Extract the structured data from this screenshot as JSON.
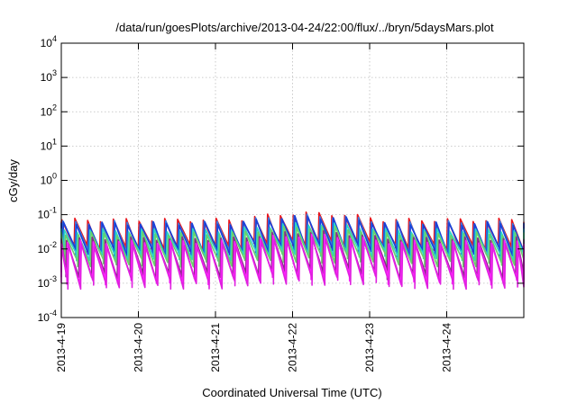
{
  "chart_data": {
    "type": "line",
    "title": "/data/run/goesPlots/archive/2013-04-24/22:00/flux/../bryn/5daysMars.plot",
    "xlabel": "Coordinated Universal Time (UTC)",
    "ylabel": "cGy/day",
    "yscale": "log",
    "ylim": [
      0.0001,
      10000
    ],
    "xlim_days": [
      0,
      6.0
    ],
    "grid": true,
    "legend": "none",
    "y_ticks": [
      {
        "base": "10",
        "exp": "-4",
        "value": 0.0001
      },
      {
        "base": "10",
        "exp": "-3",
        "value": 0.001
      },
      {
        "base": "10",
        "exp": "-2",
        "value": 0.01
      },
      {
        "base": "10",
        "exp": "-1",
        "value": 0.1
      },
      {
        "base": "10",
        "exp": "0",
        "value": 1
      },
      {
        "base": "10",
        "exp": "1",
        "value": 10
      },
      {
        "base": "10",
        "exp": "2",
        "value": 100
      },
      {
        "base": "10",
        "exp": "3",
        "value": 1000
      },
      {
        "base": "10",
        "exp": "4",
        "value": 10000
      }
    ],
    "x_ticks": [
      {
        "label": "2013-4-19",
        "day": 0
      },
      {
        "label": "2013-4-20",
        "day": 1
      },
      {
        "label": "2013-4-21",
        "day": 2
      },
      {
        "label": "2013-4-22",
        "day": 3
      },
      {
        "label": "2013-4-23",
        "day": 4
      },
      {
        "label": "2013-4-24",
        "day": 5
      }
    ],
    "sawtooth_period_days": 0.1667,
    "series": [
      {
        "color": "#e8141c",
        "peak": 0.07,
        "trough": 0.011,
        "phase": 0.0
      },
      {
        "color": "#3a7be0",
        "peak": 0.06,
        "trough": 0.009,
        "phase": 0.012
      },
      {
        "color": "#1a3fd8",
        "peak": 0.055,
        "trough": 0.008,
        "phase": 0.02
      },
      {
        "color": "#2ad4c8",
        "peak": 0.035,
        "trough": 0.006,
        "phase": 0.03
      },
      {
        "color": "#6ad06a",
        "peak": 0.028,
        "trough": 0.004,
        "phase": 0.045
      },
      {
        "color": "#8a2a8a",
        "peak": 0.02,
        "trough": 0.0017,
        "phase": 0.06
      },
      {
        "color": "#ff22ff",
        "peak": 0.016,
        "trough": 0.0012,
        "phase": 0.072
      },
      {
        "color": "#e020e0",
        "peak": 0.013,
        "trough": 0.0009,
        "phase": 0.085
      }
    ],
    "elevated_window_days": [
      2.35,
      4.25
    ]
  }
}
